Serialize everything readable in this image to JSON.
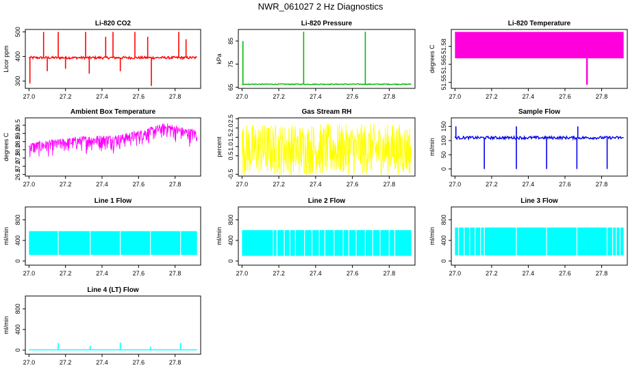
{
  "figure_title": "NWR_061027 2 Hz Diagnostics",
  "chart_data": [
    {
      "id": "co2",
      "type": "line",
      "title": "Li-820 CO2",
      "ylabel": "Licor ppm",
      "color": "#ff0000",
      "xlim": [
        26.98,
        27.94
      ],
      "ylim": [
        270,
        510
      ],
      "xticks": [
        "27.0",
        "27.2",
        "27.4",
        "27.6",
        "27.8"
      ],
      "yticks": [
        {
          "v": 300,
          "label": "300"
        },
        {
          "v": 400,
          "label": "400"
        },
        {
          "v": 500,
          "label": "500"
        }
      ],
      "x_range": [
        27.0,
        27.92
      ],
      "baseline": 395,
      "noise": [
        -5,
        5
      ],
      "lines": [
        [
          395,
          395
        ]
      ],
      "spikes": [
        {
          "x": 27.005,
          "lo": 290,
          "hi": 395
        },
        {
          "x": 27.08,
          "lo": 395,
          "hi": 500
        },
        {
          "x": 27.1,
          "lo": 340,
          "hi": 395
        },
        {
          "x": 27.16,
          "lo": 395,
          "hi": 500
        },
        {
          "x": 27.2,
          "lo": 350,
          "hi": 395
        },
        {
          "x": 27.31,
          "lo": 395,
          "hi": 500
        },
        {
          "x": 27.33,
          "lo": 330,
          "hi": 395
        },
        {
          "x": 27.42,
          "lo": 395,
          "hi": 480
        },
        {
          "x": 27.46,
          "lo": 395,
          "hi": 500
        },
        {
          "x": 27.5,
          "lo": 340,
          "hi": 395
        },
        {
          "x": 27.58,
          "lo": 395,
          "hi": 500
        },
        {
          "x": 27.65,
          "lo": 395,
          "hi": 480
        },
        {
          "x": 27.67,
          "lo": 280,
          "hi": 395
        },
        {
          "x": 27.82,
          "lo": 395,
          "hi": 500
        },
        {
          "x": 27.86,
          "lo": 395,
          "hi": 470
        }
      ]
    },
    {
      "id": "pressure",
      "type": "line",
      "title": "Li-820 Pressure",
      "ylabel": "kPa",
      "color": "#00bb00",
      "xlim": [
        26.98,
        27.94
      ],
      "ylim": [
        64.5,
        90
      ],
      "xticks": [
        "27.0",
        "27.2",
        "27.4",
        "27.6",
        "27.8"
      ],
      "yticks": [
        {
          "v": 65,
          "label": "65"
        },
        {
          "v": 75,
          "label": "75"
        },
        {
          "v": 85,
          "label": "85"
        }
      ],
      "x_range": [
        27.0,
        27.92
      ],
      "baseline": 66.3,
      "noise": [
        -0.2,
        0.2
      ],
      "spikes": [
        {
          "x": 27.005,
          "lo": 66.3,
          "hi": 85
        },
        {
          "x": 27.335,
          "lo": 66.3,
          "hi": 89
        },
        {
          "x": 27.67,
          "lo": 66.3,
          "hi": 89
        }
      ]
    },
    {
      "id": "temperature",
      "type": "band",
      "title": "Li-820 Temperature",
      "ylabel": "degrees C",
      "color": "#ff00dd",
      "xlim": [
        26.98,
        27.94
      ],
      "ylim": [
        51.545,
        51.594
      ],
      "xticks": [
        "27.0",
        "27.2",
        "27.4",
        "27.6",
        "27.8"
      ],
      "yticks": [
        {
          "v": 51.55,
          "label": "51.55"
        },
        {
          "v": 51.565,
          "label": "51.565"
        },
        {
          "v": 51.58,
          "label": "51.58"
        }
      ],
      "x_range": [
        27.0,
        27.92
      ],
      "band": [
        51.57,
        51.592
      ],
      "spikes": [
        {
          "x": 27.72,
          "lo": 51.548,
          "hi": 51.57
        }
      ]
    },
    {
      "id": "ambient",
      "type": "noise",
      "title": "Ambient Box Temperature",
      "ylabel": "degrees C",
      "color": "#ff00ff",
      "xlim": [
        26.98,
        27.94
      ],
      "ylim": [
        26.4,
        29.95
      ],
      "xticks": [
        "27.0",
        "27.2",
        "27.4",
        "27.6",
        "27.8"
      ],
      "yticks": [
        {
          "v": 26.5,
          "label": "26.5"
        },
        {
          "v": 27.0,
          "label": "27.0"
        },
        {
          "v": 27.5,
          "label": "27.5"
        },
        {
          "v": 28.0,
          "label": "28.0"
        },
        {
          "v": 28.5,
          "label": "28.5"
        },
        {
          "v": 29.0,
          "label": "29.0"
        },
        {
          "v": 29.5,
          "label": "29.5"
        }
      ],
      "x_range": [
        27.0,
        27.92
      ],
      "trend": [
        [
          27.0,
          28.1
        ],
        [
          27.3,
          28.5
        ],
        [
          27.5,
          28.6
        ],
        [
          27.62,
          28.9
        ],
        [
          27.75,
          29.3
        ],
        [
          27.85,
          29.0
        ],
        [
          27.92,
          28.9
        ]
      ],
      "noise": [
        -0.9,
        0.35
      ]
    },
    {
      "id": "rh",
      "type": "noise",
      "title": "Gas Stream RH",
      "ylabel": "percent",
      "color": "#ffff00",
      "xlim": [
        26.98,
        27.94
      ],
      "ylim": [
        -0.6,
        2.55
      ],
      "xticks": [
        "27.0",
        "27.2",
        "27.4",
        "27.6",
        "27.8"
      ],
      "yticks": [
        {
          "v": -0.5,
          "label": "-0.5"
        },
        {
          "v": 0.5,
          "label": "0.5"
        },
        {
          "v": 1.0,
          "label": "1.0"
        },
        {
          "v": 1.5,
          "label": "1.5"
        },
        {
          "v": 2.0,
          "label": "2.0"
        },
        {
          "v": 2.5,
          "label": "2.5"
        }
      ],
      "x_range": [
        27.0,
        27.92
      ],
      "trend": [
        [
          27.0,
          0.85
        ],
        [
          27.92,
          0.85
        ]
      ],
      "noise": [
        -1.4,
        1.4
      ]
    },
    {
      "id": "sample",
      "type": "line",
      "title": "Sample Flow",
      "ylabel": "ml/min",
      "color": "#0000ee",
      "xlim": [
        26.98,
        27.94
      ],
      "ylim": [
        -25,
        180
      ],
      "xticks": [
        "27.0",
        "27.2",
        "27.4",
        "27.6",
        "27.8"
      ],
      "yticks": [
        {
          "v": 0,
          "label": "0"
        },
        {
          "v": 50,
          "label": "50"
        },
        {
          "v": 100,
          "label": "100"
        },
        {
          "v": 150,
          "label": "150"
        }
      ],
      "x_range": [
        27.0,
        27.92
      ],
      "baseline": 110,
      "noise": [
        -5,
        5
      ],
      "spikes": [
        {
          "x": 27.005,
          "lo": 110,
          "hi": 150
        },
        {
          "x": 27.16,
          "lo": 0,
          "hi": 110
        },
        {
          "x": 27.335,
          "lo": 110,
          "hi": 150
        },
        {
          "x": 27.335,
          "lo": 0,
          "hi": 110
        },
        {
          "x": 27.5,
          "lo": 0,
          "hi": 110
        },
        {
          "x": 27.67,
          "lo": 110,
          "hi": 150
        },
        {
          "x": 27.665,
          "lo": 0,
          "hi": 110
        },
        {
          "x": 27.83,
          "lo": 0,
          "hi": 110
        }
      ]
    },
    {
      "id": "line1",
      "type": "flowband",
      "title": "Line 1 Flow",
      "ylabel": "ml/min",
      "color": "#00ffff",
      "xlim": [
        26.98,
        27.94
      ],
      "ylim": [
        -80,
        1050
      ],
      "xticks": [
        "27.0",
        "27.2",
        "27.4",
        "27.6",
        "27.8"
      ],
      "yticks": [
        {
          "v": 0,
          "label": "0"
        },
        {
          "v": 400,
          "label": "400"
        },
        {
          "v": 800,
          "label": "800"
        }
      ],
      "x_range": [
        27.0,
        27.92
      ],
      "band": [
        120,
        580
      ],
      "gaps": [
        27.16,
        27.335,
        27.5,
        27.665,
        27.83
      ]
    },
    {
      "id": "line2",
      "type": "flowband",
      "title": "Line 2 Flow",
      "ylabel": "ml/min",
      "color": "#00ffff",
      "xlim": [
        26.98,
        27.94
      ],
      "ylim": [
        -80,
        1050
      ],
      "xticks": [
        "27.0",
        "27.2",
        "27.4",
        "27.6",
        "27.8"
      ],
      "yticks": [
        {
          "v": 0,
          "label": "0"
        },
        {
          "v": 400,
          "label": "400"
        },
        {
          "v": 800,
          "label": "800"
        }
      ],
      "x_range": [
        27.0,
        27.92
      ],
      "band": [
        100,
        600
      ],
      "gaps": [
        27.17,
        27.19,
        27.23,
        27.26,
        27.29,
        27.34,
        27.38,
        27.42,
        27.45,
        27.5,
        27.55,
        27.58,
        27.62,
        27.67,
        27.71,
        27.75,
        27.8,
        27.83
      ]
    },
    {
      "id": "line3",
      "type": "flowband",
      "title": "Line 3 Flow",
      "ylabel": "ml/min",
      "color": "#00ffff",
      "xlim": [
        26.98,
        27.94
      ],
      "ylim": [
        -80,
        1050
      ],
      "xticks": [
        "27.0",
        "27.2",
        "27.4",
        "27.6",
        "27.8"
      ],
      "yticks": [
        {
          "v": 0,
          "label": "0"
        },
        {
          "v": 400,
          "label": "400"
        },
        {
          "v": 800,
          "label": "800"
        }
      ],
      "x_range": [
        27.0,
        27.92
      ],
      "band": [
        110,
        650
      ],
      "gaps": [
        27.02,
        27.05,
        27.08,
        27.11,
        27.14,
        27.16,
        27.335,
        27.5,
        27.665,
        27.83,
        27.86,
        27.88,
        27.9
      ]
    },
    {
      "id": "line4",
      "type": "line",
      "title": "Line 4 (LT) Flow",
      "ylabel": "ml/min",
      "color": "#00ffff",
      "xlim": [
        26.98,
        27.94
      ],
      "ylim": [
        -80,
        1050
      ],
      "xticks": [
        "27.0",
        "27.2",
        "27.4",
        "27.6",
        "27.8"
      ],
      "yticks": [
        {
          "v": 0,
          "label": "0"
        },
        {
          "v": 400,
          "label": "400"
        },
        {
          "v": 800,
          "label": "800"
        }
      ],
      "x_range": [
        27.0,
        27.92
      ],
      "baseline": 5,
      "noise": [
        0,
        0
      ],
      "spikes": [
        {
          "x": 27.16,
          "lo": 5,
          "hi": 140
        },
        {
          "x": 27.335,
          "lo": 5,
          "hi": 80
        },
        {
          "x": 27.5,
          "lo": 5,
          "hi": 150
        },
        {
          "x": 27.665,
          "lo": 5,
          "hi": 70
        },
        {
          "x": 27.83,
          "lo": 5,
          "hi": 140
        }
      ]
    }
  ]
}
